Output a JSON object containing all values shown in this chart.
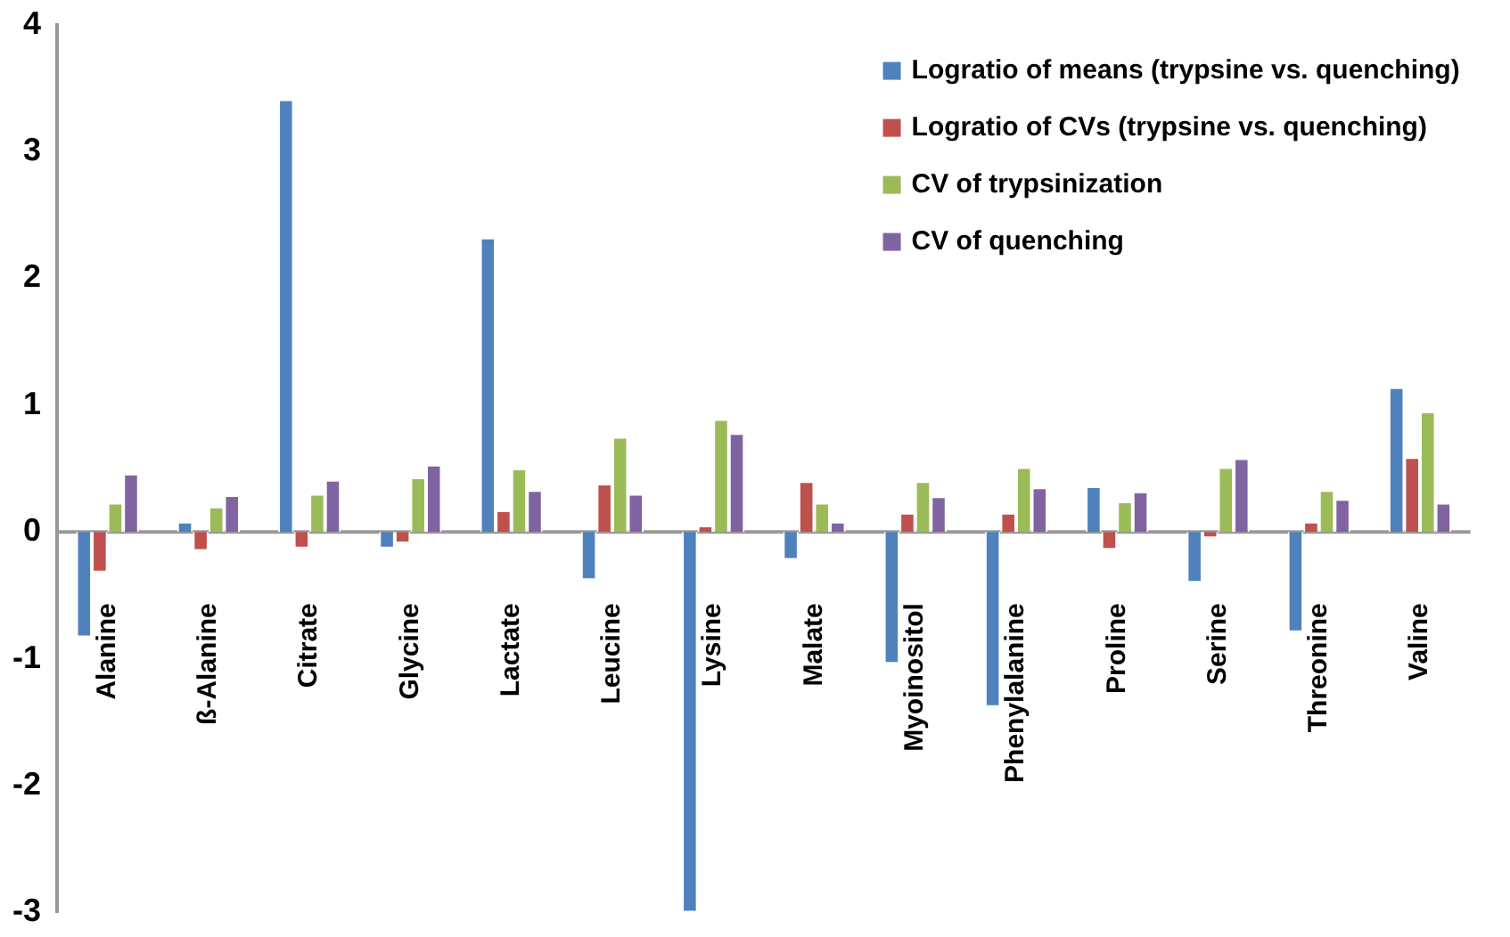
{
  "chart_data": {
    "type": "bar",
    "categories": [
      "Alanine",
      "ß-Alanine",
      "Citrate",
      "Glycine",
      "Lactate",
      "Leucine",
      "Lysine",
      "Malate",
      "Myoinositol",
      "Phenylalanine",
      "Proline",
      "Serine",
      "Threonine",
      "Valine"
    ],
    "series": [
      {
        "name": "Logratio of means (trypsine vs. quenching)",
        "color": "#4f81bd",
        "values": [
          -0.83,
          0.08,
          3.41,
          -0.13,
          2.32,
          -0.38,
          -3.0,
          -0.22,
          -1.04,
          -1.38,
          0.36,
          -0.4,
          -0.79,
          1.14
        ]
      },
      {
        "name": "Logratio of CVs (trypsine vs. quenching)",
        "color": "#c0504d",
        "values": [
          -0.32,
          -0.15,
          -0.13,
          -0.09,
          0.17,
          0.38,
          0.05,
          0.4,
          0.15,
          0.15,
          -0.14,
          -0.05,
          0.08,
          0.59
        ]
      },
      {
        "name": "CV of trypsinization",
        "color": "#9bbb59",
        "values": [
          0.23,
          0.2,
          0.3,
          0.43,
          0.5,
          0.75,
          0.89,
          0.23,
          0.4,
          0.51,
          0.24,
          0.51,
          0.33,
          0.95
        ]
      },
      {
        "name": "CV of quenching",
        "color": "#8064a2",
        "values": [
          0.46,
          0.29,
          0.41,
          0.53,
          0.33,
          0.3,
          0.78,
          0.08,
          0.28,
          0.35,
          0.32,
          0.58,
          0.26,
          0.23
        ]
      }
    ],
    "ref_lines": [
      {
        "axis": "y",
        "value": 0,
        "color": "#999999"
      }
    ],
    "ylim": [
      -3,
      4
    ],
    "yticks": [
      -3,
      -2,
      -1,
      0,
      1,
      2,
      3,
      4
    ],
    "grid": false,
    "legend": "top right"
  }
}
